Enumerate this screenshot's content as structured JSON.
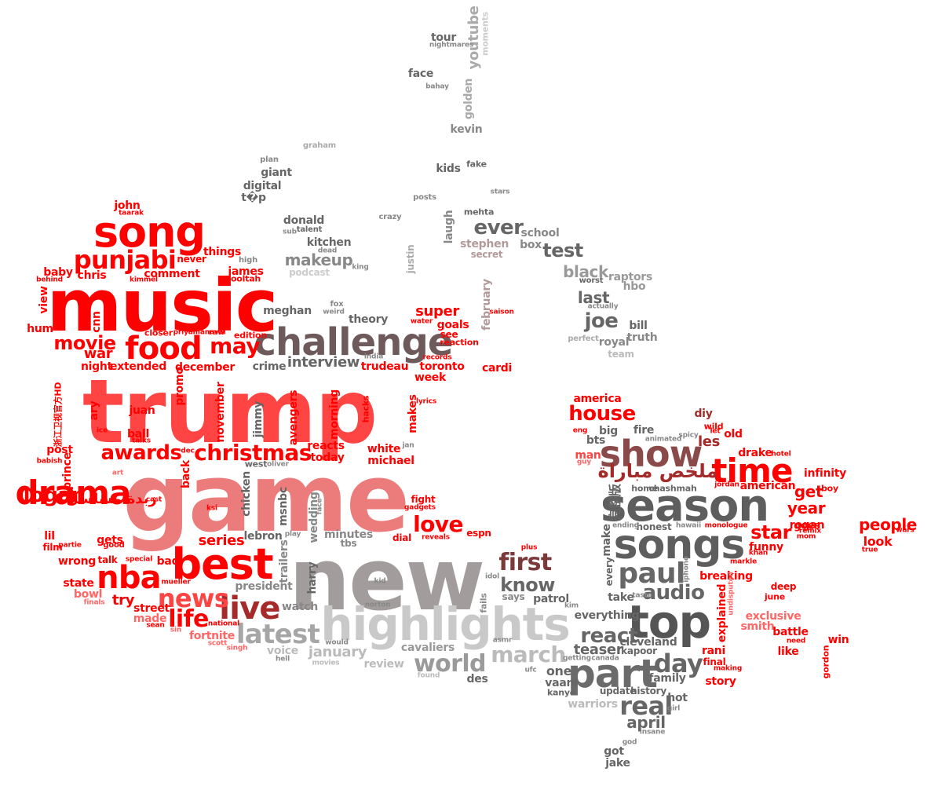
{
  "words": [
    {
      "text": "trump",
      "color": "#ff4444"
    },
    {
      "text": "game",
      "color": "#ec7b7b"
    },
    {
      "text": "new",
      "color": "#a39c9c"
    },
    {
      "text": "music",
      "color": "#ff0000"
    },
    {
      "text": "highlights",
      "color": "#c9c9c9"
    },
    {
      "text": "season",
      "color": "#5e5e5e"
    },
    {
      "text": "challenge",
      "color": "#6e5a5a"
    },
    {
      "text": "song",
      "color": "#ff0000"
    },
    {
      "text": "best",
      "color": "#ff0000"
    },
    {
      "text": "songs",
      "color": "#5e5e5e"
    },
    {
      "text": "top",
      "color": "#555555"
    },
    {
      "text": "part",
      "color": "#6b6b6b"
    },
    {
      "text": "show",
      "color": "#8a4a4a"
    },
    {
      "text": "time",
      "color": "#ff0000"
    },
    {
      "text": "drama",
      "color": "#ff0000"
    },
    {
      "text": "food",
      "color": "#ff0000"
    },
    {
      "text": "punjabi",
      "color": "#ff0000"
    },
    {
      "text": "nba",
      "color": "#ff0000"
    },
    {
      "text": "live",
      "color": "#a52a2a"
    },
    {
      "text": "news",
      "color": "#ff4444"
    },
    {
      "text": "latest",
      "color": "#a6a6a6"
    },
    {
      "text": "christmas",
      "color": "#ff0000"
    },
    {
      "text": "paul",
      "color": "#666666"
    },
    {
      "text": "world",
      "color": "#9a9a9a"
    },
    {
      "text": "first",
      "color": "#7a3a3a"
    },
    {
      "text": "day",
      "color": "#666666"
    },
    {
      "text": "movie",
      "color": "#ff0000"
    },
    {
      "text": "may",
      "color": "#ff0000"
    },
    {
      "text": "awards",
      "color": "#ff0000"
    },
    {
      "text": "logan",
      "color": "#ff0000"
    },
    {
      "text": "life",
      "color": "#ff0000"
    },
    {
      "text": "love",
      "color": "#ff0000"
    },
    {
      "text": "real",
      "color": "#666666"
    },
    {
      "text": "march",
      "color": "#bbbbbb"
    },
    {
      "text": "audio",
      "color": "#666666"
    },
    {
      "text": "know",
      "color": "#666666"
    },
    {
      "text": "react",
      "color": "#666666"
    },
    {
      "text": "house",
      "color": "#ff0000"
    },
    {
      "text": "star",
      "color": "#ff0000"
    },
    {
      "text": "joe",
      "color": "#666666"
    },
    {
      "text": "ever",
      "color": "#666666"
    },
    {
      "text": "test",
      "color": "#666666"
    },
    {
      "text": "makeup",
      "color": "#888888"
    },
    {
      "text": "black",
      "color": "#999999"
    },
    {
      "text": "interview",
      "color": "#666666"
    },
    {
      "text": "series",
      "color": "#ff0000"
    },
    {
      "text": "war",
      "color": "#ff0000"
    },
    {
      "text": "try",
      "color": "#ff0000"
    },
    {
      "text": "super",
      "color": "#ff0000"
    },
    {
      "text": "teaser",
      "color": "#666666"
    },
    {
      "text": "get",
      "color": "#ff0000"
    },
    {
      "text": "year",
      "color": "#ff0000"
    },
    {
      "text": "last",
      "color": "#666666"
    },
    {
      "text": "april",
      "color": "#666666"
    },
    {
      "text": "chris",
      "color": "#ff0000"
    },
    {
      "text": "comment",
      "color": "#ff0000"
    },
    {
      "text": "things",
      "color": "#ff0000"
    },
    {
      "text": "people",
      "color": "#ff0000"
    },
    {
      "text": "look",
      "color": "#ff0000"
    },
    {
      "text": "funny",
      "color": "#ff0000"
    },
    {
      "text": "january",
      "color": "#bbbbbb"
    },
    {
      "text": "president",
      "color": "#888888"
    },
    {
      "text": "watch",
      "color": "#888888"
    },
    {
      "text": "voice",
      "color": "#bbbbbb"
    },
    {
      "text": "cavaliers",
      "color": "#999999"
    },
    {
      "text": "review",
      "color": "#bbbbbb"
    },
    {
      "text": "theory",
      "color": "#666666"
    },
    {
      "text": "meghan",
      "color": "#666666"
    },
    {
      "text": "donald",
      "color": "#666666"
    },
    {
      "text": "kitchen",
      "color": "#666666"
    },
    {
      "text": "podcast",
      "color": "#cccccc"
    },
    {
      "text": "giant",
      "color": "#666666"
    },
    {
      "text": "digital",
      "color": "#666666"
    },
    {
      "text": "t�p",
      "color": "#666666"
    },
    {
      "text": "kids",
      "color": "#666666"
    },
    {
      "text": "face",
      "color": "#666666"
    },
    {
      "text": "tour",
      "color": "#666666"
    },
    {
      "text": "kevin",
      "color": "#888888"
    },
    {
      "text": "stephen",
      "color": "#b39a9a"
    },
    {
      "text": "secret",
      "color": "#b39a9a"
    },
    {
      "text": "school",
      "color": "#888888"
    },
    {
      "text": "box",
      "color": "#888888"
    },
    {
      "text": "raptors",
      "color": "#999999"
    },
    {
      "text": "hbo",
      "color": "#999999"
    },
    {
      "text": "bill",
      "color": "#666666"
    },
    {
      "text": "truth",
      "color": "#888888"
    },
    {
      "text": "royal",
      "color": "#888888"
    },
    {
      "text": "team",
      "color": "#bbbbbb"
    },
    {
      "text": "goals",
      "color": "#ff0000"
    },
    {
      "text": "see",
      "color": "#ff0000"
    },
    {
      "text": "reaction",
      "color": "#ff0000"
    },
    {
      "text": "toronto",
      "color": "#ff0000"
    },
    {
      "text": "week",
      "color": "#ff0000"
    },
    {
      "text": "cardi",
      "color": "#ff0000"
    },
    {
      "text": "trudeau",
      "color": "#ff0000"
    },
    {
      "text": "crime",
      "color": "#666666"
    },
    {
      "text": "december",
      "color": "#ff0000"
    },
    {
      "text": "extended",
      "color": "#ff0000"
    },
    {
      "text": "night",
      "color": "#ff0000"
    },
    {
      "text": "juan",
      "color": "#ff0000"
    },
    {
      "text": "ball",
      "color": "#ff0000"
    },
    {
      "text": "post",
      "color": "#ff0000"
    },
    {
      "text": "reacts",
      "color": "#ff0000"
    },
    {
      "text": "today",
      "color": "#ff0000"
    },
    {
      "text": "white",
      "color": "#ff0000"
    },
    {
      "text": "michael",
      "color": "#ff0000"
    },
    {
      "text": "lebron",
      "color": "#666666"
    },
    {
      "text": "minutes",
      "color": "#888888"
    },
    {
      "text": "fight",
      "color": "#ff0000"
    },
    {
      "text": "dial",
      "color": "#ff0000"
    },
    {
      "text": "espn",
      "color": "#ff0000"
    },
    {
      "text": "patrol",
      "color": "#666666"
    },
    {
      "text": "says",
      "color": "#888888"
    },
    {
      "text": "everything",
      "color": "#666666"
    },
    {
      "text": "cleveland",
      "color": "#666666"
    },
    {
      "text": "kapoor",
      "color": "#666666"
    },
    {
      "text": "one",
      "color": "#666666"
    },
    {
      "text": "vaani",
      "color": "#666666"
    },
    {
      "text": "kanye",
      "color": "#666666"
    },
    {
      "text": "update",
      "color": "#666666"
    },
    {
      "text": "history",
      "color": "#666666"
    },
    {
      "text": "family",
      "color": "#666666"
    },
    {
      "text": "hot",
      "color": "#666666"
    },
    {
      "text": "warriors",
      "color": "#bbbbbb"
    },
    {
      "text": "got",
      "color": "#666666"
    },
    {
      "text": "jake",
      "color": "#666666"
    },
    {
      "text": "america",
      "color": "#ff0000"
    },
    {
      "text": "big",
      "color": "#666666"
    },
    {
      "text": "bts",
      "color": "#666666"
    },
    {
      "text": "fire",
      "color": "#666666"
    },
    {
      "text": "diy",
      "color": "#a52a2a"
    },
    {
      "text": "wild",
      "color": "#ff0000"
    },
    {
      "text": "les",
      "color": "#a52a2a"
    },
    {
      "text": "old",
      "color": "#ff0000"
    },
    {
      "text": "drake",
      "color": "#ff0000"
    },
    {
      "text": "american",
      "color": "#ff0000"
    },
    {
      "text": "infinity",
      "color": "#ff0000"
    },
    {
      "text": "rogan",
      "color": "#ff0000"
    },
    {
      "text": "goes",
      "color": "#ff0000"
    },
    {
      "text": "man",
      "color": "#ff4444"
    },
    {
      "text": "honest",
      "color": "#666666"
    },
    {
      "text": "home",
      "color": "#666666"
    },
    {
      "text": "chashmah",
      "color": "#666666"
    },
    {
      "text": "take",
      "color": "#666666"
    },
    {
      "text": "breaking",
      "color": "#ff0000"
    },
    {
      "text": "exclusive",
      "color": "#ff6666"
    },
    {
      "text": "smith",
      "color": "#ff6666"
    },
    {
      "text": "battle",
      "color": "#ff0000"
    },
    {
      "text": "deep",
      "color": "#ff0000"
    },
    {
      "text": "june",
      "color": "#ff0000"
    },
    {
      "text": "win",
      "color": "#ff0000"
    },
    {
      "text": "like",
      "color": "#ff0000"
    },
    {
      "text": "rani",
      "color": "#ff0000"
    },
    {
      "text": "final",
      "color": "#ff0000"
    },
    {
      "text": "story",
      "color": "#ff0000"
    },
    {
      "text": "john",
      "color": "#ff0000"
    },
    {
      "text": "baby",
      "color": "#ff0000"
    },
    {
      "text": "never",
      "color": "#ff0000"
    },
    {
      "text": "james",
      "color": "#ff0000"
    },
    {
      "text": "hum",
      "color": "#ff0000"
    },
    {
      "text": "gets",
      "color": "#ff0000"
    },
    {
      "text": "talk",
      "color": "#ff0000"
    },
    {
      "text": "wrong",
      "color": "#ff0000"
    },
    {
      "text": "state",
      "color": "#ff0000"
    },
    {
      "text": "bowl",
      "color": "#ff6666"
    },
    {
      "text": "bad",
      "color": "#ff0000"
    },
    {
      "text": "street",
      "color": "#ff0000"
    },
    {
      "text": "made",
      "color": "#ff6666"
    },
    {
      "text": "fortnite",
      "color": "#ff6666"
    },
    {
      "text": "lil",
      "color": "#ff0000"
    },
    {
      "text": "film",
      "color": "#ff0000"
    },
    {
      "text": "edition",
      "color": "#ff0000"
    },
    {
      "text": "youtube",
      "color": "#aaaaaa",
      "rot": true
    },
    {
      "text": "moments",
      "color": "#cccccc",
      "rot": true
    },
    {
      "text": "golden",
      "color": "#aaaaaa",
      "rot": true
    },
    {
      "text": "laugh",
      "color": "#888888",
      "rot": true
    },
    {
      "text": "justin",
      "color": "#aaaaaa",
      "rot": true
    },
    {
      "text": "february",
      "color": "#b39a9a",
      "rot": true
    },
    {
      "text": "view",
      "color": "#ff0000",
      "rot": true
    },
    {
      "text": "cnn",
      "color": "#ff0000",
      "rot": true
    },
    {
      "text": "promo",
      "color": "#ff0000",
      "rot": true
    },
    {
      "text": "november",
      "color": "#ff0000",
      "rot": true
    },
    {
      "text": "jimmy",
      "color": "#666666",
      "rot": true
    },
    {
      "text": "avengers",
      "color": "#ff0000",
      "rot": true
    },
    {
      "text": "morning",
      "color": "#ff0000",
      "rot": true
    },
    {
      "text": "hacks",
      "color": "#ff0000",
      "rot": true
    },
    {
      "text": "makes",
      "color": "#ff0000",
      "rot": true
    },
    {
      "text": "ary",
      "color": "#ff0000",
      "rot": true
    },
    {
      "text": "prince",
      "color": "#ff0000",
      "rot": true
    },
    {
      "text": "back",
      "color": "#ff0000",
      "rot": true
    },
    {
      "text": "chicken",
      "color": "#666666",
      "rot": true
    },
    {
      "text": "msnbc",
      "color": "#666666",
      "rot": true
    },
    {
      "text": "wedding",
      "color": "#888888",
      "rot": true
    },
    {
      "text": "trailers",
      "color": "#888888",
      "rot": true
    },
    {
      "text": "harry",
      "color": "#666666",
      "rot": true
    },
    {
      "text": "make",
      "color": "#666666",
      "rot": true
    },
    {
      "text": "every",
      "color": "#666666",
      "rot": true
    },
    {
      "text": "explained",
      "color": "#ff0000",
      "rot": true
    },
    {
      "text": "fails",
      "color": "#888888",
      "rot": true
    },
    {
      "text": "gordon",
      "color": "#ff0000",
      "rot": true
    },
    {
      "text": "nightmares",
      "color": "#888888"
    },
    {
      "text": "bahay",
      "color": "#888888"
    },
    {
      "text": "fake",
      "color": "#666666"
    },
    {
      "text": "stars",
      "color": "#888888"
    },
    {
      "text": "graham",
      "color": "#aaaaaa"
    },
    {
      "text": "plan",
      "color": "#888888"
    },
    {
      "text": "posts",
      "color": "#888888"
    },
    {
      "text": "mehta",
      "color": "#666666"
    },
    {
      "text": "crazy",
      "color": "#888888"
    },
    {
      "text": "sub",
      "color": "#888888"
    },
    {
      "text": "talent",
      "color": "#666666"
    },
    {
      "text": "dead",
      "color": "#888888"
    },
    {
      "text": "king",
      "color": "#888888"
    },
    {
      "text": "high",
      "color": "#888888"
    },
    {
      "text": "ooltah",
      "color": "#ff0000"
    },
    {
      "text": "taarak",
      "color": "#ff0000"
    },
    {
      "text": "kimmel",
      "color": "#ff0000"
    },
    {
      "text": "behind",
      "color": "#ff0000"
    },
    {
      "text": "closer",
      "color": "#ff0000"
    },
    {
      "text": "priyamanaval",
      "color": "#ff0000"
    },
    {
      "text": "raw",
      "color": "#ff0000"
    },
    {
      "text": "fox",
      "color": "#888888"
    },
    {
      "text": "weird",
      "color": "#888888"
    },
    {
      "text": "water",
      "color": "#ff0000"
    },
    {
      "text": "saison",
      "color": "#ff0000"
    },
    {
      "text": "worst",
      "color": "#666666"
    },
    {
      "text": "actually",
      "color": "#888888"
    },
    {
      "text": "perfect",
      "color": "#aaaaaa"
    },
    {
      "text": "india",
      "color": "#888888"
    },
    {
      "text": "records",
      "color": "#ff0000"
    },
    {
      "text": "lyrics",
      "color": "#ff0000"
    },
    {
      "text": "jan",
      "color": "#888888"
    },
    {
      "text": "ice",
      "color": "#ff0000"
    },
    {
      "text": "talks",
      "color": "#ff0000"
    },
    {
      "text": "babish",
      "color": "#ff0000"
    },
    {
      "text": "dec",
      "color": "#ff0000"
    },
    {
      "text": "west",
      "color": "#666666"
    },
    {
      "text": "oliver",
      "color": "#888888"
    },
    {
      "text": "art",
      "color": "#ff6666"
    },
    {
      "text": "cast",
      "color": "#ff0000"
    },
    {
      "text": "ksi",
      "color": "#ff0000"
    },
    {
      "text": "gadgets",
      "color": "#ff0000"
    },
    {
      "text": "reveals",
      "color": "#ff0000"
    },
    {
      "text": "play",
      "color": "#888888"
    },
    {
      "text": "tbs",
      "color": "#888888"
    },
    {
      "text": "face",
      "color": "#888888",
      "rot": true,
      "key": "lace"
    },
    {
      "text": "partie",
      "color": "#ff0000"
    },
    {
      "text": "good",
      "color": "#ff0000"
    },
    {
      "text": "special",
      "color": "#ff0000"
    },
    {
      "text": "mueller",
      "color": "#ff0000"
    },
    {
      "text": "finals",
      "color": "#ff6666"
    },
    {
      "text": "sean",
      "color": "#ff0000"
    },
    {
      "text": "sin",
      "color": "#ff6666"
    },
    {
      "text": "national",
      "color": "#ff0000"
    },
    {
      "text": "scott",
      "color": "#ff6666"
    },
    {
      "text": "singh",
      "color": "#ff6666"
    },
    {
      "text": "kid",
      "color": "#888888"
    },
    {
      "text": "norton",
      "color": "#888888"
    },
    {
      "text": "hell",
      "color": "#888888"
    },
    {
      "text": "would",
      "color": "#888888"
    },
    {
      "text": "movies",
      "color": "#bbbbbb"
    },
    {
      "text": "idol",
      "color": "#888888"
    },
    {
      "text": "asmr",
      "color": "#888888"
    },
    {
      "text": "found",
      "color": "#bbbbbb"
    },
    {
      "text": "ufc",
      "color": "#888888"
    },
    {
      "text": "des",
      "color": "#666666"
    },
    {
      "text": "plus",
      "color": "#ff0000"
    },
    {
      "text": "kim",
      "color": "#888888"
    },
    {
      "text": "getting",
      "color": "#888888"
    },
    {
      "text": "canada",
      "color": "#888888"
    },
    {
      "text": "iphone",
      "color": "#888888",
      "rot": true
    },
    {
      "text": "hawaii",
      "color": "#888888"
    },
    {
      "text": "monologue",
      "color": "#ff0000"
    },
    {
      "text": "taste",
      "color": "#888888"
    },
    {
      "text": "ending",
      "color": "#888888"
    },
    {
      "text": "markle",
      "color": "#ff0000"
    },
    {
      "text": "undisputed",
      "color": "#ff6666",
      "rot": true
    },
    {
      "text": "animated",
      "color": "#888888"
    },
    {
      "text": "spicy",
      "color": "#888888"
    },
    {
      "text": "let",
      "color": "#ff0000"
    },
    {
      "text": "eng",
      "color": "#ff0000"
    },
    {
      "text": "guy",
      "color": "#ff6666"
    },
    {
      "text": "hotel",
      "color": "#ff0000"
    },
    {
      "text": "jordan",
      "color": "#ff0000"
    },
    {
      "text": "boy",
      "color": "#ff0000"
    },
    {
      "text": "remix",
      "color": "#ff0000"
    },
    {
      "text": "mom",
      "color": "#ff0000"
    },
    {
      "text": "wars",
      "color": "#ff0000"
    },
    {
      "text": "true",
      "color": "#ff0000"
    },
    {
      "text": "khan",
      "color": "#ff0000"
    },
    {
      "text": "need",
      "color": "#ff0000"
    },
    {
      "text": "making",
      "color": "#ff0000"
    },
    {
      "text": "girl",
      "color": "#888888"
    },
    {
      "text": "insane",
      "color": "#888888"
    },
    {
      "text": "god",
      "color": "#888888"
    },
    {
      "text": "完整版",
      "color": "#666666",
      "rot": true
    },
    {
      "text": "ملخص مباراة",
      "color": "#a52a2a"
    },
    {
      "text": "زبدة مسلسل",
      "color": "#ff0000"
    },
    {
      "text": "浙江卫视官方HD",
      "color": "#ff0000",
      "rot": true
    }
  ]
}
